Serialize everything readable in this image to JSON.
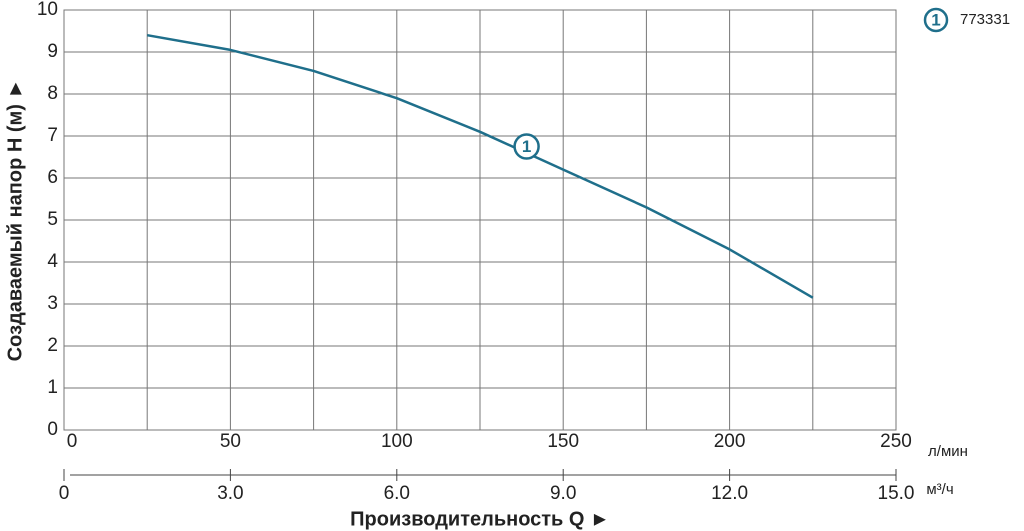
{
  "chart_data": {
    "type": "line",
    "y_label": "Создаваемый напор H (м) ►",
    "x_label": "Производительность Q ►",
    "x_unit": "л/мин",
    "x2_unit": "м³/ч",
    "x": [
      25,
      50,
      75,
      100,
      125,
      150,
      175,
      200,
      225
    ],
    "series": [
      {
        "name": "773331",
        "marker": "1",
        "color": "#1f6f8b",
        "values": [
          9.4,
          9.05,
          8.55,
          7.9,
          7.1,
          6.2,
          5.3,
          4.3,
          3.15
        ]
      }
    ],
    "annotation": {
      "x": 139,
      "y": 6.75
    },
    "xlim": [
      0,
      250
    ],
    "xticks": [
      0,
      50,
      100,
      150,
      200,
      250
    ],
    "x_minor_grid": [
      25,
      75,
      125,
      175,
      225
    ],
    "x2lim": [
      0,
      15
    ],
    "x2ticks": [
      0,
      {
        "value": 3,
        "label": "3.0"
      },
      {
        "value": 6,
        "label": "6.0"
      },
      {
        "value": 9,
        "label": "9.0"
      },
      {
        "value": 12,
        "label": "12.0"
      },
      {
        "value": 15,
        "label": "15.0"
      }
    ],
    "ylim": [
      0,
      10
    ],
    "yticks": [
      0,
      1,
      2,
      3,
      4,
      5,
      6,
      7,
      8,
      9,
      10
    ],
    "grid": true
  }
}
